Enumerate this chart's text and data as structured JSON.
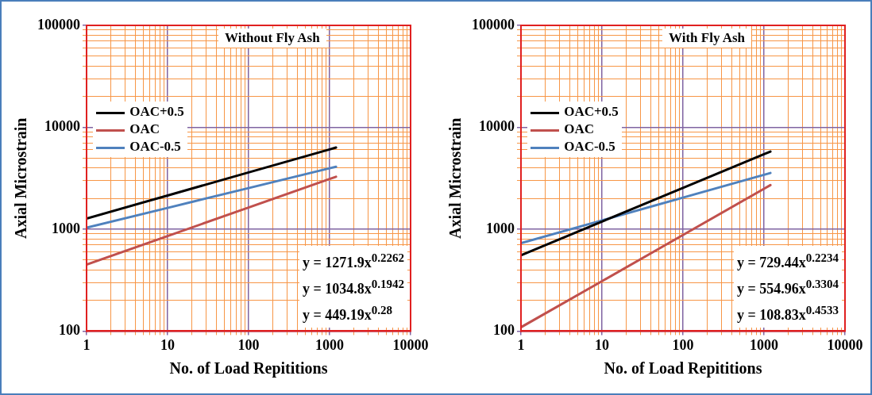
{
  "chart_data": [
    {
      "type": "line",
      "title": "Without Fly Ash",
      "xlabel": "No. of Load Repititions",
      "ylabel": "Axial Microstrain",
      "log": "xy",
      "grid": true,
      "legend": "top left",
      "marker": "none",
      "line_style": "solid",
      "xlim": [
        1,
        10000
      ],
      "xticks": [
        1,
        {
          "value": 2,
          "label": null
        },
        {
          "value": 3,
          "label": null
        },
        {
          "value": 4,
          "label": null
        },
        {
          "value": 5,
          "label": null
        },
        {
          "value": 6,
          "label": null
        },
        {
          "value": 7,
          "label": null
        },
        {
          "value": 8,
          "label": null
        },
        {
          "value": 9,
          "label": null
        },
        10,
        {
          "value": 20,
          "label": null
        },
        {
          "value": 30,
          "label": null
        },
        {
          "value": 40,
          "label": null
        },
        {
          "value": 50,
          "label": null
        },
        {
          "value": 60,
          "label": null
        },
        {
          "value": 70,
          "label": null
        },
        {
          "value": 80,
          "label": null
        },
        {
          "value": 90,
          "label": null
        },
        100,
        {
          "value": 200,
          "label": null
        },
        {
          "value": 300,
          "label": null
        },
        {
          "value": 400,
          "label": null
        },
        {
          "value": 500,
          "label": null
        },
        {
          "value": 600,
          "label": null
        },
        {
          "value": 700,
          "label": null
        },
        {
          "value": 800,
          "label": null
        },
        {
          "value": 900,
          "label": null
        },
        1000,
        {
          "value": 2000,
          "label": null
        },
        {
          "value": 3000,
          "label": null
        },
        {
          "value": 4000,
          "label": null
        },
        {
          "value": 5000,
          "label": null
        },
        {
          "value": 6000,
          "label": null
        },
        {
          "value": 7000,
          "label": null
        },
        {
          "value": 8000,
          "label": null
        },
        {
          "value": 9000,
          "label": null
        },
        10000
      ],
      "ylim": [
        100,
        100000
      ],
      "yticks": [
        100,
        {
          "value": 200,
          "label": null
        },
        {
          "value": 300,
          "label": null
        },
        {
          "value": 400,
          "label": null
        },
        {
          "value": 500,
          "label": null
        },
        {
          "value": 600,
          "label": null
        },
        {
          "value": 700,
          "label": null
        },
        {
          "value": 800,
          "label": null
        },
        {
          "value": 900,
          "label": null
        },
        1000,
        {
          "value": 2000,
          "label": null
        },
        {
          "value": 3000,
          "label": null
        },
        {
          "value": 4000,
          "label": null
        },
        {
          "value": 5000,
          "label": null
        },
        {
          "value": 6000,
          "label": null
        },
        {
          "value": 7000,
          "label": null
        },
        {
          "value": 8000,
          "label": null
        },
        {
          "value": 9000,
          "label": null
        },
        10000,
        {
          "value": 20000,
          "label": null
        },
        {
          "value": 30000,
          "label": null
        },
        {
          "value": 40000,
          "label": null
        },
        {
          "value": 50000,
          "label": null
        },
        {
          "value": 60000,
          "label": null
        },
        {
          "value": 70000,
          "label": null
        },
        {
          "value": 80000,
          "label": null
        },
        {
          "value": 90000,
          "label": null
        },
        100000
      ],
      "series": [
        {
          "name": "OAC+0.5",
          "color": "#000000",
          "x": [
            1,
            10,
            100,
            1000,
            1200
          ],
          "values": [
            1272,
            2141,
            3603,
            6065,
            6325
          ]
        },
        {
          "name": "OAC",
          "color": "#c0504d",
          "x": [
            1,
            10,
            100,
            1000,
            1200
          ],
          "values": [
            449,
            856,
            1631,
            3107,
            3270
          ]
        },
        {
          "name": "OAC-0.5",
          "color": "#4f81bd",
          "x": [
            1,
            10,
            100,
            1000,
            1200
          ],
          "values": [
            1035,
            1618,
            2531,
            3959,
            4100
          ]
        }
      ],
      "annotations": [
        "y = 1271.9x$^{0.2262}$",
        "y = 1034.8x$^{0.1942}$",
        "y = 449.19x$^{0.28}$"
      ]
    },
    {
      "type": "line",
      "title": "With Fly Ash",
      "xlabel": "No. of Load Repititions",
      "ylabel": "Axial Microstrain",
      "log": "xy",
      "grid": true,
      "legend": "top left",
      "marker": "none",
      "line_style": "solid",
      "xlim": [
        1,
        10000
      ],
      "xticks": [
        1,
        {
          "value": 2,
          "label": null
        },
        {
          "value": 3,
          "label": null
        },
        {
          "value": 4,
          "label": null
        },
        {
          "value": 5,
          "label": null
        },
        {
          "value": 6,
          "label": null
        },
        {
          "value": 7,
          "label": null
        },
        {
          "value": 8,
          "label": null
        },
        {
          "value": 9,
          "label": null
        },
        10,
        {
          "value": 20,
          "label": null
        },
        {
          "value": 30,
          "label": null
        },
        {
          "value": 40,
          "label": null
        },
        {
          "value": 50,
          "label": null
        },
        {
          "value": 60,
          "label": null
        },
        {
          "value": 70,
          "label": null
        },
        {
          "value": 80,
          "label": null
        },
        {
          "value": 90,
          "label": null
        },
        100,
        {
          "value": 200,
          "label": null
        },
        {
          "value": 300,
          "label": null
        },
        {
          "value": 400,
          "label": null
        },
        {
          "value": 500,
          "label": null
        },
        {
          "value": 600,
          "label": null
        },
        {
          "value": 700,
          "label": null
        },
        {
          "value": 800,
          "label": null
        },
        {
          "value": 900,
          "label": null
        },
        1000,
        {
          "value": 2000,
          "label": null
        },
        {
          "value": 3000,
          "label": null
        },
        {
          "value": 4000,
          "label": null
        },
        {
          "value": 5000,
          "label": null
        },
        {
          "value": 6000,
          "label": null
        },
        {
          "value": 7000,
          "label": null
        },
        {
          "value": 8000,
          "label": null
        },
        {
          "value": 9000,
          "label": null
        },
        10000
      ],
      "ylim": [
        100,
        100000
      ],
      "yticks": [
        100,
        {
          "value": 200,
          "label": null
        },
        {
          "value": 300,
          "label": null
        },
        {
          "value": 400,
          "label": null
        },
        {
          "value": 500,
          "label": null
        },
        {
          "value": 600,
          "label": null
        },
        {
          "value": 700,
          "label": null
        },
        {
          "value": 800,
          "label": null
        },
        {
          "value": 900,
          "label": null
        },
        1000,
        {
          "value": 2000,
          "label": null
        },
        {
          "value": 3000,
          "label": null
        },
        {
          "value": 4000,
          "label": null
        },
        {
          "value": 5000,
          "label": null
        },
        {
          "value": 6000,
          "label": null
        },
        {
          "value": 7000,
          "label": null
        },
        {
          "value": 8000,
          "label": null
        },
        {
          "value": 9000,
          "label": null
        },
        10000,
        {
          "value": 20000,
          "label": null
        },
        {
          "value": 30000,
          "label": null
        },
        {
          "value": 40000,
          "label": null
        },
        {
          "value": 50000,
          "label": null
        },
        {
          "value": 60000,
          "label": null
        },
        {
          "value": 70000,
          "label": null
        },
        {
          "value": 80000,
          "label": null
        },
        {
          "value": 90000,
          "label": null
        },
        100000
      ],
      "series": [
        {
          "name": "OAC+0.5",
          "color": "#000000",
          "x": [
            1,
            10,
            100,
            1000,
            1200
          ],
          "values": [
            555,
            1188,
            2542,
            5440,
            5777
          ]
        },
        {
          "name": "OAC",
          "color": "#c0504d",
          "x": [
            1,
            10,
            100,
            1000,
            1200
          ],
          "values": [
            109,
            309,
            878,
            2492,
            2709
          ]
        },
        {
          "name": "OAC-0.5",
          "color": "#4f81bd",
          "x": [
            1,
            10,
            100,
            1000,
            1200
          ],
          "values": [
            729,
            1220,
            2041,
            3414,
            3556
          ]
        }
      ],
      "annotations": [
        "y = 729.44x$^{0.2234}$",
        "y = 554.96x$^{0.3304}$",
        "y = 108.83x$^{0.4533}$"
      ]
    }
  ]
}
